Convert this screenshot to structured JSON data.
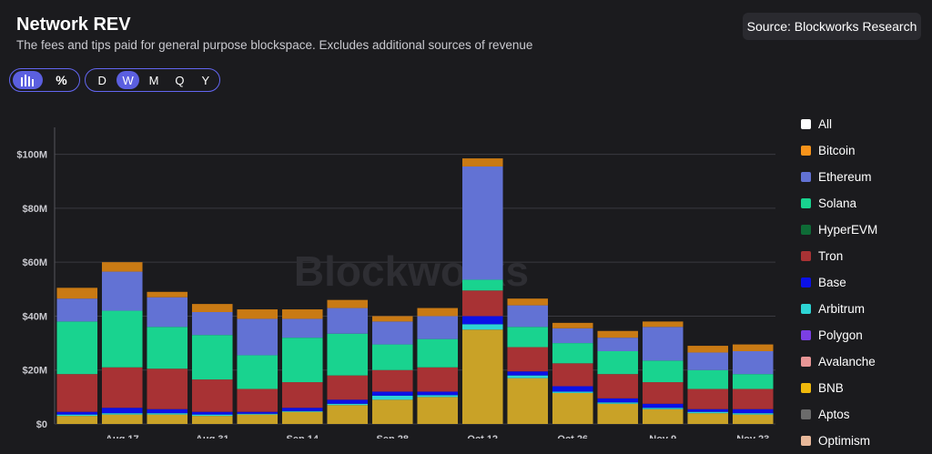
{
  "header": {
    "title": "Network REV",
    "subtitle": "The fees and tips paid for general purpose blockspace. Excludes additional sources of revenue",
    "source_button": "Source: Blockworks Research"
  },
  "toolbar": {
    "chart_mode_icons": [
      "bar-chart-icon",
      "percent-icon"
    ],
    "percent_symbol": "%",
    "periods": [
      "D",
      "W",
      "M",
      "Q",
      "Y"
    ],
    "active_period": "W"
  },
  "watermark": "Blockworks",
  "chart_data": {
    "type": "bar",
    "stacked": true,
    "ylim": [
      0,
      110
    ],
    "y_ticks": [
      "$0",
      "$20M",
      "$40M",
      "$60M",
      "$80M",
      "$100M"
    ],
    "y_tick_values": [
      0,
      20,
      40,
      60,
      80,
      100
    ],
    "x_tick_labels": [
      {
        "index": 1,
        "label": "Aug 17"
      },
      {
        "index": 3,
        "label": "Aug 31"
      },
      {
        "index": 5,
        "label": "Sep 14"
      },
      {
        "index": 7,
        "label": "Sep 28"
      },
      {
        "index": 9,
        "label": "Oct 12"
      },
      {
        "index": 11,
        "label": "Oct 26"
      },
      {
        "index": 13,
        "label": "Nov 9"
      },
      {
        "index": 15,
        "label": "Nov 23"
      }
    ],
    "grid": true,
    "legend_position": "right",
    "series": [
      {
        "name": "BNB",
        "color": "#c9a227",
        "values": [
          3,
          3.5,
          3.5,
          3,
          3.5,
          4.5,
          7,
          9,
          10,
          35,
          17,
          11.5,
          7.5,
          5.5,
          4,
          3.5
        ]
      },
      {
        "name": "Arbitrum",
        "color": "#2dd4d4",
        "values": [
          0.5,
          0.5,
          0.5,
          0.5,
          0.3,
          0.3,
          0.5,
          1.5,
          0.7,
          2,
          1,
          0.5,
          0.5,
          0.5,
          0.5,
          0.5
        ]
      },
      {
        "name": "Base",
        "color": "#0b11e8",
        "values": [
          1,
          2,
          1.5,
          1,
          0.7,
          1.2,
          1.5,
          1.5,
          1.3,
          3,
          1.5,
          2,
          1.5,
          1.5,
          1,
          1.5
        ]
      },
      {
        "name": "Tron",
        "color": "#a83234",
        "values": [
          14,
          15,
          15,
          12,
          8.5,
          9.5,
          9,
          8,
          9,
          9.5,
          9,
          8.5,
          9,
          8,
          7.5,
          7.5
        ]
      },
      {
        "name": "Solana",
        "color": "#19d38f",
        "values": [
          19.5,
          21,
          15.5,
          16.5,
          12.5,
          16.5,
          15.5,
          9.5,
          10.5,
          4,
          7.5,
          7.5,
          8.5,
          8,
          7,
          5.5
        ]
      },
      {
        "name": "Ethereum",
        "color": "#6272d4",
        "values": [
          8.5,
          14.5,
          11,
          8.5,
          13.5,
          7,
          9.5,
          8.5,
          8.5,
          42,
          8,
          5.5,
          5,
          12.5,
          6.5,
          8.5
        ]
      },
      {
        "name": "Bitcoin",
        "color": "#c97a14",
        "values": [
          4,
          3.5,
          2,
          3,
          3.5,
          3.5,
          3,
          2,
          3,
          3,
          2.5,
          2,
          2.5,
          2,
          2.5,
          2.5
        ]
      }
    ]
  },
  "legend": [
    {
      "label": "All",
      "color": "#ffffff"
    },
    {
      "label": "Bitcoin",
      "color": "#f7931a"
    },
    {
      "label": "Ethereum",
      "color": "#6272d4"
    },
    {
      "label": "Solana",
      "color": "#19d38f"
    },
    {
      "label": "HyperEVM",
      "color": "#0e6b36"
    },
    {
      "label": "Tron",
      "color": "#a83234"
    },
    {
      "label": "Base",
      "color": "#0b11e8"
    },
    {
      "label": "Arbitrum",
      "color": "#2dd4d4"
    },
    {
      "label": "Polygon",
      "color": "#7b3fe4"
    },
    {
      "label": "Avalanche",
      "color": "#e89696"
    },
    {
      "label": "BNB",
      "color": "#f0b90b"
    },
    {
      "label": "Aptos",
      "color": "#6b6b6b"
    },
    {
      "label": "Optimism",
      "color": "#e8b89a"
    }
  ]
}
